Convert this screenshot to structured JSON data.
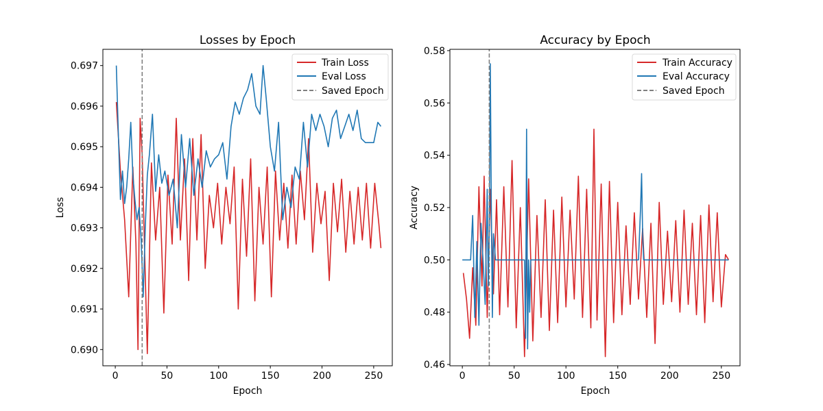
{
  "chart_data": [
    {
      "type": "line",
      "title": "Losses by Epoch",
      "xlabel": "Epoch",
      "ylabel": "Loss",
      "xlim": [
        -12,
        268
      ],
      "ylim": [
        0.6896,
        0.6974
      ],
      "xticks": [
        0,
        50,
        100,
        150,
        200,
        250
      ],
      "yticks": [
        0.69,
        0.691,
        0.692,
        0.693,
        0.694,
        0.695,
        0.696,
        0.697
      ],
      "ytick_labels": [
        "0.690",
        "0.691",
        "0.692",
        "0.693",
        "0.694",
        "0.695",
        "0.696",
        "0.697"
      ],
      "legend_position": "top-right",
      "saved_epoch": 26,
      "series": [
        {
          "name": "Train Loss",
          "color": "#d62728",
          "x": [
            1,
            5,
            9,
            13,
            17,
            20,
            22,
            24,
            26,
            28,
            31,
            35,
            39,
            43,
            47,
            51,
            55,
            59,
            63,
            67,
            71,
            75,
            79,
            83,
            87,
            91,
            95,
            99,
            103,
            107,
            111,
            115,
            119,
            123,
            127,
            131,
            135,
            139,
            143,
            147,
            151,
            155,
            159,
            163,
            167,
            171,
            175,
            179,
            183,
            187,
            191,
            195,
            199,
            203,
            207,
            211,
            215,
            219,
            223,
            227,
            231,
            235,
            239,
            243,
            247,
            251,
            255,
            257
          ],
          "y": [
            0.6961,
            0.6944,
            0.6932,
            0.6913,
            0.6945,
            0.6926,
            0.69,
            0.6957,
            0.6948,
            0.6928,
            0.6899,
            0.6946,
            0.6927,
            0.694,
            0.6909,
            0.6943,
            0.6926,
            0.6957,
            0.6927,
            0.6947,
            0.6917,
            0.6952,
            0.6927,
            0.6953,
            0.692,
            0.6938,
            0.693,
            0.6941,
            0.6926,
            0.694,
            0.6931,
            0.6945,
            0.691,
            0.6942,
            0.6923,
            0.6947,
            0.6912,
            0.694,
            0.6926,
            0.6945,
            0.6913,
            0.6944,
            0.6927,
            0.6941,
            0.6925,
            0.6943,
            0.6926,
            0.6944,
            0.6932,
            0.6952,
            0.6924,
            0.6941,
            0.6931,
            0.6939,
            0.6917,
            0.6941,
            0.6929,
            0.6942,
            0.6924,
            0.6939,
            0.6926,
            0.694,
            0.6927,
            0.6941,
            0.6925,
            0.6941,
            0.6931,
            0.6925
          ]
        },
        {
          "name": "Eval Loss",
          "color": "#1f77b4",
          "x": [
            1,
            3,
            5,
            7,
            9,
            11,
            13,
            15,
            17,
            19,
            21,
            23,
            25,
            27,
            29,
            31,
            33,
            36,
            39,
            42,
            45,
            48,
            52,
            56,
            60,
            64,
            68,
            72,
            76,
            80,
            84,
            88,
            92,
            96,
            100,
            104,
            108,
            112,
            116,
            120,
            124,
            128,
            132,
            136,
            140,
            143,
            146,
            150,
            154,
            158,
            162,
            166,
            170,
            174,
            178,
            182,
            186,
            190,
            194,
            198,
            202,
            206,
            210,
            214,
            218,
            222,
            226,
            230,
            234,
            238,
            242,
            246,
            250,
            254,
            257
          ],
          "y": [
            0.697,
            0.6953,
            0.6937,
            0.6944,
            0.6936,
            0.694,
            0.6947,
            0.6956,
            0.6943,
            0.6937,
            0.6932,
            0.6935,
            0.6927,
            0.6913,
            0.693,
            0.6943,
            0.6948,
            0.6958,
            0.6939,
            0.6948,
            0.6941,
            0.6944,
            0.6938,
            0.6942,
            0.693,
            0.6953,
            0.694,
            0.6952,
            0.6938,
            0.6947,
            0.694,
            0.6949,
            0.6945,
            0.6947,
            0.6948,
            0.6951,
            0.6942,
            0.6955,
            0.6961,
            0.6958,
            0.6962,
            0.6964,
            0.6968,
            0.696,
            0.6958,
            0.697,
            0.6962,
            0.695,
            0.6944,
            0.6956,
            0.6932,
            0.694,
            0.6935,
            0.6945,
            0.6942,
            0.6956,
            0.6945,
            0.6958,
            0.6954,
            0.6958,
            0.6955,
            0.695,
            0.6957,
            0.6959,
            0.6952,
            0.6955,
            0.6958,
            0.6954,
            0.6959,
            0.6952,
            0.6951,
            0.6951,
            0.6951,
            0.6956,
            0.6955
          ]
        },
        {
          "name": "Saved Epoch",
          "color": "#7f7f7f",
          "style": "dashed",
          "x": [
            26,
            26
          ],
          "y": [
            0.6896,
            0.6974
          ]
        }
      ]
    },
    {
      "type": "line",
      "title": "Accuracy by Epoch",
      "xlabel": "Epoch",
      "ylabel": "Accuracy",
      "xlim": [
        -12,
        268
      ],
      "ylim": [
        0.4595,
        0.5805
      ],
      "xticks": [
        0,
        50,
        100,
        150,
        200,
        250
      ],
      "yticks": [
        0.46,
        0.48,
        0.5,
        0.52,
        0.54,
        0.56,
        0.58
      ],
      "ytick_labels": [
        "0.46",
        "0.48",
        "0.50",
        "0.52",
        "0.54",
        "0.56",
        "0.58"
      ],
      "legend_position": "top-right",
      "saved_epoch": 26,
      "series": [
        {
          "name": "Train Accuracy",
          "color": "#d62728",
          "x": [
            1,
            4,
            7,
            10,
            13,
            16,
            19,
            21,
            24,
            27,
            30,
            33,
            36,
            40,
            44,
            48,
            52,
            56,
            60,
            64,
            68,
            72,
            76,
            80,
            84,
            88,
            92,
            96,
            100,
            104,
            108,
            112,
            116,
            120,
            124,
            127,
            130,
            134,
            138,
            142,
            146,
            150,
            154,
            158,
            162,
            166,
            170,
            174,
            178,
            182,
            186,
            190,
            194,
            198,
            202,
            206,
            210,
            214,
            218,
            222,
            226,
            230,
            234,
            238,
            242,
            246,
            250,
            254,
            257
          ],
          "y": [
            0.495,
            0.485,
            0.47,
            0.497,
            0.475,
            0.528,
            0.49,
            0.532,
            0.478,
            0.527,
            0.487,
            0.523,
            0.479,
            0.528,
            0.482,
            0.538,
            0.474,
            0.52,
            0.463,
            0.531,
            0.469,
            0.517,
            0.478,
            0.523,
            0.473,
            0.519,
            0.476,
            0.524,
            0.482,
            0.519,
            0.485,
            0.532,
            0.478,
            0.527,
            0.474,
            0.55,
            0.477,
            0.529,
            0.463,
            0.53,
            0.476,
            0.522,
            0.479,
            0.513,
            0.483,
            0.518,
            0.485,
            0.512,
            0.478,
            0.514,
            0.468,
            0.522,
            0.483,
            0.511,
            0.484,
            0.515,
            0.48,
            0.519,
            0.483,
            0.514,
            0.479,
            0.517,
            0.476,
            0.521,
            0.484,
            0.518,
            0.482,
            0.502,
            0.5
          ]
        },
        {
          "name": "Eval Accuracy",
          "color": "#1f77b4",
          "x": [
            0,
            8,
            10,
            12,
            14,
            16,
            18,
            20,
            22,
            24,
            25,
            26,
            27,
            28,
            29,
            30,
            32,
            34,
            60,
            61,
            62,
            63,
            64,
            65,
            66,
            68,
            170,
            171,
            172,
            173,
            174,
            175,
            176,
            257
          ],
          "y": [
            0.5,
            0.5,
            0.517,
            0.478,
            0.507,
            0.475,
            0.514,
            0.5,
            0.483,
            0.527,
            0.49,
            0.51,
            0.575,
            0.52,
            0.478,
            0.51,
            0.5,
            0.5,
            0.5,
            0.47,
            0.55,
            0.466,
            0.5,
            0.48,
            0.5,
            0.5,
            0.5,
            0.51,
            0.52,
            0.533,
            0.51,
            0.5,
            0.5,
            0.5
          ]
        },
        {
          "name": "Saved Epoch",
          "color": "#7f7f7f",
          "style": "dashed",
          "x": [
            26,
            26
          ],
          "y": [
            0.4595,
            0.5805
          ]
        }
      ]
    }
  ]
}
